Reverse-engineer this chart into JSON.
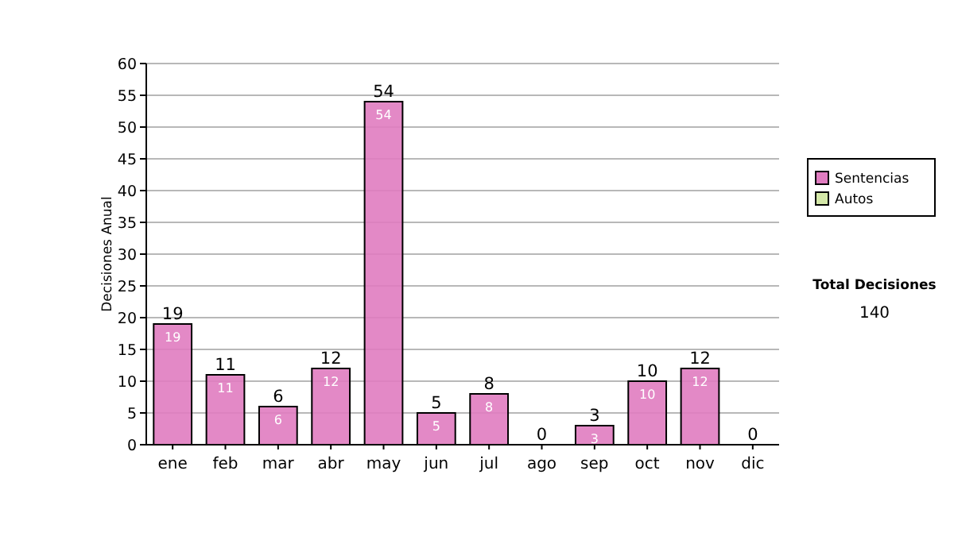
{
  "chart_data": {
    "type": "bar",
    "ylabel": "Decisiones Anual",
    "categories": [
      "ene",
      "feb",
      "mar",
      "abr",
      "may",
      "jun",
      "jul",
      "ago",
      "sep",
      "oct",
      "nov",
      "dic"
    ],
    "stacked": true,
    "series": [
      {
        "name": "Sentencias",
        "color": "#e07cc0",
        "values": [
          19,
          11,
          6,
          12,
          54,
          5,
          8,
          0,
          3,
          10,
          12,
          0
        ],
        "value_labels": [
          "19",
          "11",
          "6",
          "12",
          "54",
          "5",
          "8",
          null,
          "3",
          "10",
          "12",
          null
        ]
      },
      {
        "name": "Autos",
        "color": "#d4e8a8",
        "values": [
          0,
          0,
          0,
          0,
          0,
          0,
          0,
          0,
          0,
          0,
          0,
          0
        ]
      }
    ],
    "totals": [
      "19",
      "11",
      "6",
      "12",
      "54",
      "5",
      "8",
      "0",
      "3",
      "10",
      "12",
      "0"
    ],
    "ylim": [
      0,
      60
    ],
    "yticks": [
      0,
      5,
      10,
      15,
      20,
      25,
      30,
      35,
      40,
      45,
      50,
      55,
      60
    ],
    "grid": "y",
    "legend": "right",
    "annotations": [
      "Total Decisiones",
      "140"
    ]
  }
}
